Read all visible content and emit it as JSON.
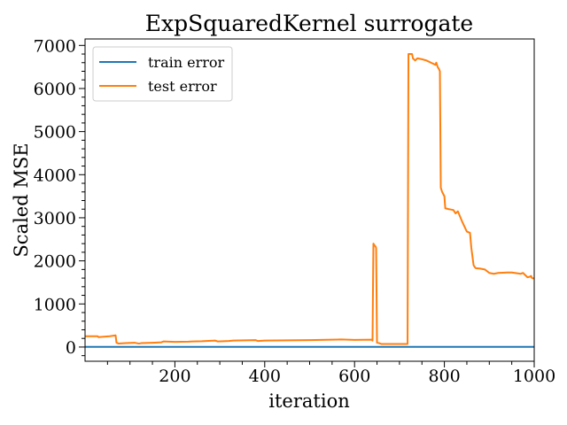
{
  "chart_data": {
    "type": "line",
    "title": "ExpSquaredKernel surrogate",
    "xlabel": "iteration",
    "ylabel": "Scaled MSE",
    "xlim": [
      0,
      1000
    ],
    "ylim": [
      -330,
      7150
    ],
    "xticks": [
      200,
      400,
      600,
      800,
      1000
    ],
    "yticks": [
      0,
      1000,
      2000,
      3000,
      4000,
      5000,
      6000,
      7000
    ],
    "grid": false,
    "legend": {
      "position": "top-left",
      "entries": [
        "train error",
        "test error"
      ]
    },
    "series": [
      {
        "name": "train error",
        "color": "#1f77b4",
        "x": [
          0,
          1000
        ],
        "y": [
          5,
          5
        ]
      },
      {
        "name": "test error",
        "color": "#ff7f0e",
        "x": [
          0,
          28,
          30,
          55,
          68,
          70,
          75,
          90,
          110,
          120,
          125,
          150,
          170,
          175,
          200,
          230,
          240,
          260,
          290,
          295,
          320,
          330,
          380,
          385,
          400,
          450,
          500,
          550,
          570,
          600,
          638,
          640,
          642,
          643,
          645,
          647,
          648,
          650,
          655,
          660,
          700,
          718,
          720,
          728,
          730,
          735,
          740,
          750,
          760,
          770,
          780,
          782,
          785,
          788,
          790,
          792,
          795,
          800,
          802,
          810,
          820,
          825,
          830,
          838,
          840,
          850,
          857,
          860,
          865,
          868,
          870,
          880,
          890,
          900,
          910,
          920,
          940,
          950,
          970,
          975,
          985,
          990,
          993,
          995,
          1000
        ],
        "y": [
          250,
          250,
          230,
          250,
          270,
          100,
          80,
          90,
          100,
          80,
          90,
          100,
          110,
          130,
          120,
          125,
          130,
          135,
          150,
          130,
          140,
          150,
          160,
          140,
          150,
          155,
          160,
          170,
          175,
          165,
          170,
          150,
          2400,
          2380,
          2350,
          2330,
          2300,
          100,
          90,
          70,
          70,
          70,
          6800,
          6800,
          6700,
          6650,
          6700,
          6680,
          6650,
          6600,
          6550,
          6600,
          6500,
          6450,
          6400,
          3700,
          3600,
          3500,
          3220,
          3200,
          3180,
          3100,
          3150,
          2950,
          2900,
          2680,
          2650,
          2300,
          1900,
          1850,
          1830,
          1820,
          1800,
          1720,
          1700,
          1720,
          1730,
          1730,
          1700,
          1720,
          1620,
          1630,
          1650,
          1600,
          1590
        ]
      }
    ]
  }
}
